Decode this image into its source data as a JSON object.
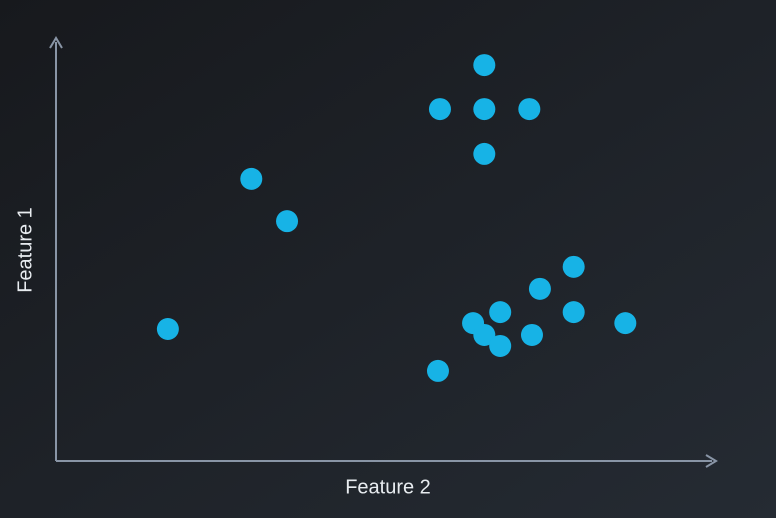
{
  "chart_data": {
    "type": "scatter",
    "xlabel": "Feature 2",
    "ylabel": "Feature 1",
    "xlim": [
      0,
      100
    ],
    "ylim": [
      0,
      100
    ],
    "color": "#17b3e6",
    "x": [
      16.9,
      29.5,
      34.9,
      64.7,
      58.0,
      64.7,
      71.5,
      64.7,
      78.2,
      73.1,
      67.1,
      78.2,
      63.0,
      86.0,
      64.7,
      71.9,
      67.1,
      57.7
    ],
    "values": [
      31.2,
      66.7,
      56.7,
      93.6,
      83.2,
      83.2,
      83.2,
      72.6,
      45.9,
      40.7,
      35.2,
      35.2,
      32.6,
      32.6,
      29.8,
      29.8,
      27.2,
      21.3
    ]
  }
}
